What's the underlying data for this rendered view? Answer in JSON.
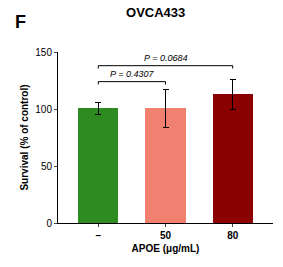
{
  "chart_data": {
    "type": "bar",
    "title": "OVCA433",
    "xlabel": "APOE (μg/mL)",
    "ylabel": "Survival (% of control)",
    "categories": [
      "–",
      "50",
      "80"
    ],
    "values": [
      100.5,
      100.5,
      113.0
    ],
    "errors": [
      5.5,
      17.0,
      13.0
    ],
    "colors": [
      "#2e8b22",
      "#f08070",
      "#8b0000"
    ],
    "ylim": [
      0,
      150
    ],
    "yticks": [
      0,
      50,
      100,
      150
    ],
    "grid": false,
    "annotations": [
      {
        "text": "F"
      },
      {
        "text": "P = 0.4307",
        "from": "–",
        "to": "50",
        "y": 124
      },
      {
        "text": "P = 0.0684",
        "from": "–",
        "to": "80",
        "y": 138
      }
    ]
  }
}
